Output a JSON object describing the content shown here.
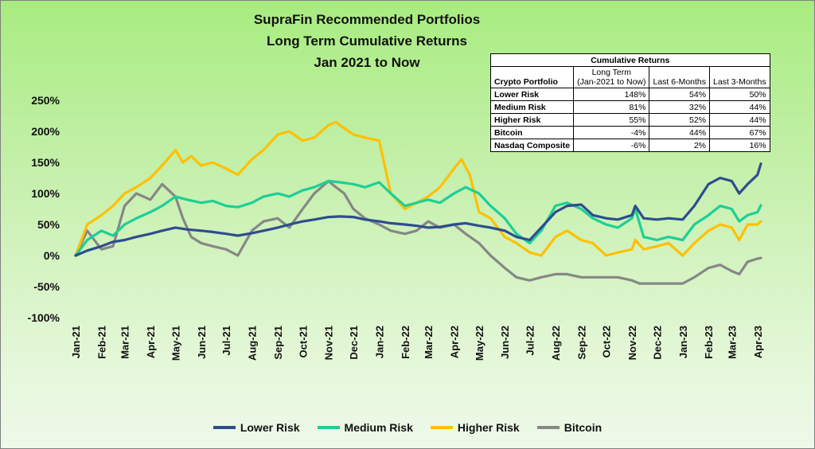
{
  "title_lines": [
    "SupraFin Recommended Portfolios",
    "Long Term Cumulative Returns",
    "Jan 2021 to Now"
  ],
  "table": {
    "caption": "Cumulative Returns",
    "header_portfolio": "Crypto Portfolio",
    "header_long_term": [
      "Long Term",
      "(Jan-2021 to Now)"
    ],
    "header_6m": "Last 6-Months",
    "header_3m": "Last 3-Months",
    "rows": [
      {
        "name": "Lower Risk",
        "long": "148%",
        "m6": "54%",
        "m3": "50%"
      },
      {
        "name": "Medium Risk",
        "long": "81%",
        "m6": "32%",
        "m3": "44%"
      },
      {
        "name": "Higher Risk",
        "long": "55%",
        "m6": "52%",
        "m3": "44%"
      },
      {
        "name": "Bitcoin",
        "long": "-4%",
        "m6": "44%",
        "m3": "67%"
      },
      {
        "name": "Nasdaq Composite",
        "long": "-6%",
        "m6": "2%",
        "m3": "16%"
      }
    ]
  },
  "chart_data": {
    "type": "line",
    "y_unit": "percent",
    "ylim": [
      -100,
      250
    ],
    "yticks": [
      250,
      200,
      150,
      100,
      50,
      0,
      -50,
      -100
    ],
    "ytick_labels": [
      "250%",
      "200%",
      "150%",
      "100%",
      "50%",
      "0%",
      "-50%",
      "-100%"
    ],
    "x_labels": [
      "Jan-21",
      "Feb-21",
      "Mar-21",
      "Apr-21",
      "May-21",
      "Jun-21",
      "Jul-21",
      "Aug-21",
      "Sep-21",
      "Oct-21",
      "Nov-21",
      "Dec-21",
      "Jan-22",
      "Feb-22",
      "Mar-22",
      "Apr-22",
      "May-22",
      "Jun-22",
      "Jul-22",
      "Aug-22",
      "Sep-22",
      "Oct-22",
      "Nov-22",
      "Dec-22",
      "Jan-23",
      "Feb-23",
      "Mar-23",
      "Apr-23"
    ],
    "x_dates": [
      "2021-01-01",
      "2021-02-01",
      "2021-03-01",
      "2021-04-01",
      "2021-05-01",
      "2021-06-01",
      "2021-07-01",
      "2021-08-01",
      "2021-09-01",
      "2021-10-01",
      "2021-11-01",
      "2021-12-01",
      "2022-01-01",
      "2022-02-01",
      "2022-03-01",
      "2022-04-01",
      "2022-05-01",
      "2022-06-01",
      "2022-07-01",
      "2022-08-01",
      "2022-09-01",
      "2022-10-01",
      "2022-11-01",
      "2022-12-01",
      "2023-01-01",
      "2023-02-01",
      "2023-03-01",
      "2023-04-01"
    ],
    "grid": false,
    "legend_position": "bottom",
    "series": [
      {
        "name": "Lower Risk",
        "color": "#2e4d8f",
        "x": [
          "2021-01-01",
          "2021-01-15",
          "2021-02-01",
          "2021-02-15",
          "2021-03-01",
          "2021-03-15",
          "2021-04-01",
          "2021-04-15",
          "2021-05-01",
          "2021-05-15",
          "2021-06-01",
          "2021-06-15",
          "2021-07-01",
          "2021-07-15",
          "2021-08-01",
          "2021-08-15",
          "2021-09-01",
          "2021-09-15",
          "2021-10-01",
          "2021-10-15",
          "2021-11-01",
          "2021-11-15",
          "2021-12-01",
          "2021-12-15",
          "2022-01-01",
          "2022-01-15",
          "2022-02-01",
          "2022-02-15",
          "2022-03-01",
          "2022-03-15",
          "2022-04-01",
          "2022-04-15",
          "2022-05-01",
          "2022-05-15",
          "2022-06-01",
          "2022-06-15",
          "2022-07-01",
          "2022-07-15",
          "2022-08-01",
          "2022-08-15",
          "2022-09-01",
          "2022-09-15",
          "2022-10-01",
          "2022-10-15",
          "2022-11-01",
          "2022-11-05",
          "2022-11-15",
          "2022-12-01",
          "2022-12-15",
          "2023-01-01",
          "2023-01-15",
          "2023-02-01",
          "2023-02-15",
          "2023-03-01",
          "2023-03-10",
          "2023-03-20",
          "2023-04-01",
          "2023-04-05"
        ],
        "y": [
          0,
          8,
          15,
          22,
          25,
          30,
          35,
          40,
          45,
          42,
          40,
          38,
          35,
          32,
          36,
          40,
          45,
          50,
          55,
          58,
          62,
          63,
          62,
          58,
          55,
          52,
          50,
          48,
          45,
          46,
          50,
          52,
          48,
          45,
          40,
          30,
          25,
          45,
          70,
          80,
          82,
          65,
          60,
          58,
          65,
          80,
          60,
          58,
          60,
          58,
          80,
          115,
          125,
          120,
          100,
          115,
          130,
          148
        ]
      },
      {
        "name": "Medium Risk",
        "color": "#1dcf96",
        "x": [
          "2021-01-01",
          "2021-01-15",
          "2021-02-01",
          "2021-02-15",
          "2021-03-01",
          "2021-03-15",
          "2021-04-01",
          "2021-04-15",
          "2021-05-01",
          "2021-05-15",
          "2021-06-01",
          "2021-06-15",
          "2021-07-01",
          "2021-07-15",
          "2021-08-01",
          "2021-08-15",
          "2021-09-01",
          "2021-09-15",
          "2021-10-01",
          "2021-10-15",
          "2021-11-01",
          "2021-11-15",
          "2021-12-01",
          "2021-12-15",
          "2022-01-01",
          "2022-01-15",
          "2022-02-01",
          "2022-02-15",
          "2022-03-01",
          "2022-03-15",
          "2022-04-01",
          "2022-04-15",
          "2022-05-01",
          "2022-05-15",
          "2022-06-01",
          "2022-06-15",
          "2022-07-01",
          "2022-07-15",
          "2022-08-01",
          "2022-08-15",
          "2022-09-01",
          "2022-09-15",
          "2022-10-01",
          "2022-10-15",
          "2022-11-01",
          "2022-11-05",
          "2022-11-15",
          "2022-12-01",
          "2022-12-15",
          "2023-01-01",
          "2023-01-15",
          "2023-02-01",
          "2023-02-15",
          "2023-03-01",
          "2023-03-10",
          "2023-03-20",
          "2023-04-01",
          "2023-04-05"
        ],
        "y": [
          0,
          25,
          40,
          32,
          50,
          60,
          70,
          80,
          95,
          90,
          85,
          88,
          80,
          78,
          85,
          95,
          100,
          95,
          105,
          110,
          120,
          118,
          115,
          110,
          118,
          100,
          80,
          85,
          90,
          85,
          100,
          110,
          100,
          80,
          60,
          35,
          20,
          40,
          80,
          85,
          75,
          60,
          50,
          45,
          60,
          75,
          30,
          25,
          30,
          25,
          50,
          65,
          80,
          75,
          55,
          65,
          70,
          81
        ]
      },
      {
        "name": "Higher Risk",
        "color": "#ffc000",
        "x": [
          "2021-01-01",
          "2021-01-15",
          "2021-02-01",
          "2021-02-15",
          "2021-03-01",
          "2021-03-15",
          "2021-04-01",
          "2021-04-15",
          "2021-05-01",
          "2021-05-10",
          "2021-05-20",
          "2021-06-01",
          "2021-06-15",
          "2021-07-01",
          "2021-07-15",
          "2021-08-01",
          "2021-08-15",
          "2021-09-01",
          "2021-09-15",
          "2021-10-01",
          "2021-10-15",
          "2021-11-01",
          "2021-11-10",
          "2021-11-20",
          "2021-12-01",
          "2021-12-15",
          "2022-01-01",
          "2022-01-15",
          "2022-02-01",
          "2022-02-15",
          "2022-03-01",
          "2022-03-15",
          "2022-04-01",
          "2022-04-10",
          "2022-04-20",
          "2022-05-01",
          "2022-05-15",
          "2022-06-01",
          "2022-06-15",
          "2022-07-01",
          "2022-07-15",
          "2022-08-01",
          "2022-08-15",
          "2022-09-01",
          "2022-09-15",
          "2022-10-01",
          "2022-10-15",
          "2022-11-01",
          "2022-11-05",
          "2022-11-15",
          "2022-12-01",
          "2022-12-15",
          "2023-01-01",
          "2023-01-15",
          "2023-02-01",
          "2023-02-15",
          "2023-03-01",
          "2023-03-10",
          "2023-03-20",
          "2023-04-01",
          "2023-04-05"
        ],
        "y": [
          0,
          50,
          65,
          80,
          100,
          110,
          125,
          145,
          170,
          150,
          160,
          145,
          150,
          140,
          130,
          155,
          170,
          195,
          200,
          185,
          190,
          210,
          215,
          205,
          195,
          190,
          185,
          100,
          75,
          85,
          95,
          110,
          140,
          155,
          130,
          70,
          60,
          30,
          20,
          5,
          0,
          30,
          40,
          25,
          20,
          0,
          5,
          10,
          25,
          10,
          15,
          20,
          0,
          20,
          40,
          50,
          45,
          25,
          50,
          50,
          55
        ]
      },
      {
        "name": "Bitcoin",
        "color": "#878787",
        "x": [
          "2021-01-01",
          "2021-01-15",
          "2021-02-01",
          "2021-02-15",
          "2021-03-01",
          "2021-03-15",
          "2021-04-01",
          "2021-04-15",
          "2021-05-01",
          "2021-05-10",
          "2021-05-20",
          "2021-06-01",
          "2021-06-15",
          "2021-07-01",
          "2021-07-15",
          "2021-08-01",
          "2021-08-15",
          "2021-09-01",
          "2021-09-15",
          "2021-10-01",
          "2021-10-15",
          "2021-11-01",
          "2021-11-10",
          "2021-11-20",
          "2021-12-01",
          "2021-12-15",
          "2022-01-01",
          "2022-01-15",
          "2022-02-01",
          "2022-02-15",
          "2022-03-01",
          "2022-03-15",
          "2022-04-01",
          "2022-04-15",
          "2022-05-01",
          "2022-05-15",
          "2022-06-01",
          "2022-06-15",
          "2022-07-01",
          "2022-07-15",
          "2022-08-01",
          "2022-08-15",
          "2022-09-01",
          "2022-09-15",
          "2022-10-01",
          "2022-10-15",
          "2022-11-01",
          "2022-11-10",
          "2022-11-20",
          "2022-12-01",
          "2022-12-15",
          "2023-01-01",
          "2023-01-15",
          "2023-02-01",
          "2023-02-15",
          "2023-03-01",
          "2023-03-10",
          "2023-03-20",
          "2023-04-01",
          "2023-04-05"
        ],
        "y": [
          0,
          40,
          10,
          15,
          80,
          100,
          90,
          115,
          95,
          60,
          30,
          20,
          15,
          10,
          0,
          40,
          55,
          60,
          45,
          75,
          100,
          120,
          110,
          100,
          75,
          60,
          50,
          40,
          35,
          40,
          55,
          45,
          50,
          35,
          20,
          0,
          -20,
          -35,
          -40,
          -35,
          -30,
          -30,
          -35,
          -35,
          -35,
          -35,
          -40,
          -45,
          -45,
          -45,
          -45,
          -45,
          -35,
          -20,
          -15,
          -25,
          -30,
          -10,
          -5,
          -4
        ]
      }
    ]
  }
}
